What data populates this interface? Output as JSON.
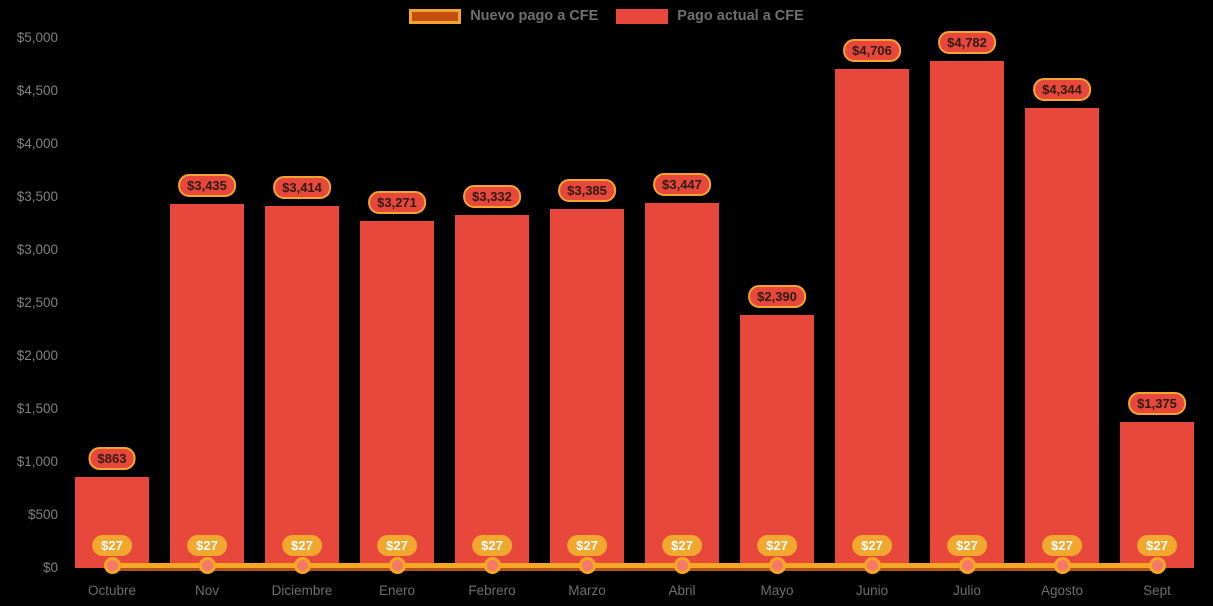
{
  "chart_data": {
    "type": "bar",
    "subtype": "bar-with-line-overlay",
    "title": "",
    "xlabel": "",
    "ylabel": "",
    "categories": [
      "Octubre",
      "Nov",
      "Diciembre",
      "Enero",
      "Febrero",
      "Marzo",
      "Abril",
      "Mayo",
      "Junio",
      "Julio",
      "Agosto",
      "Sept"
    ],
    "series": [
      {
        "name": "Nuevo pago a CFE",
        "type": "line",
        "color": "#f7a823",
        "values": [
          27,
          27,
          27,
          27,
          27,
          27,
          27,
          27,
          27,
          27,
          27,
          27
        ],
        "labels": [
          "$27",
          "$27",
          "$27",
          "$27",
          "$27",
          "$27",
          "$27",
          "$27",
          "$27",
          "$27",
          "$27",
          "$27"
        ]
      },
      {
        "name": "Pago actual a CFE",
        "type": "bar",
        "color": "#e8483b",
        "values": [
          863,
          3435,
          3414,
          3271,
          3332,
          3385,
          3447,
          2390,
          4706,
          4782,
          4344,
          1375
        ],
        "labels": [
          "$863",
          "$3,435",
          "$3,414",
          "$3,271",
          "$3,332",
          "$3,385",
          "$3,447",
          "$2,390",
          "$4,706",
          "$4,782",
          "$4,344",
          "$1,375"
        ]
      }
    ],
    "ylim": [
      0,
      5000
    ],
    "ytick_step": 500,
    "ytick_labels": [
      "$0",
      "$500",
      "$1,000",
      "$1,500",
      "$2,000",
      "$2,500",
      "$3,000",
      "$3,500",
      "$4,000",
      "$4,500",
      "$5,000"
    ],
    "grid": false,
    "legend_position": "top-center",
    "background_color": "#000000"
  },
  "colors": {
    "bar": "#e8483b",
    "line": "#f7a823",
    "axis_line": "#b3541e",
    "marker_fill": "#f4796b",
    "marker_border": "#f7a823",
    "bar_badge_bg": "#e8483b",
    "bar_badge_border": "#f2a52e",
    "bar_badge_text": "#2f1b10",
    "line_badge_bg": "#f2a72e",
    "line_badge_text": "#ffffff",
    "legend_text": "#6f6f6f",
    "axis_text": "#808080",
    "background": "#000000"
  }
}
